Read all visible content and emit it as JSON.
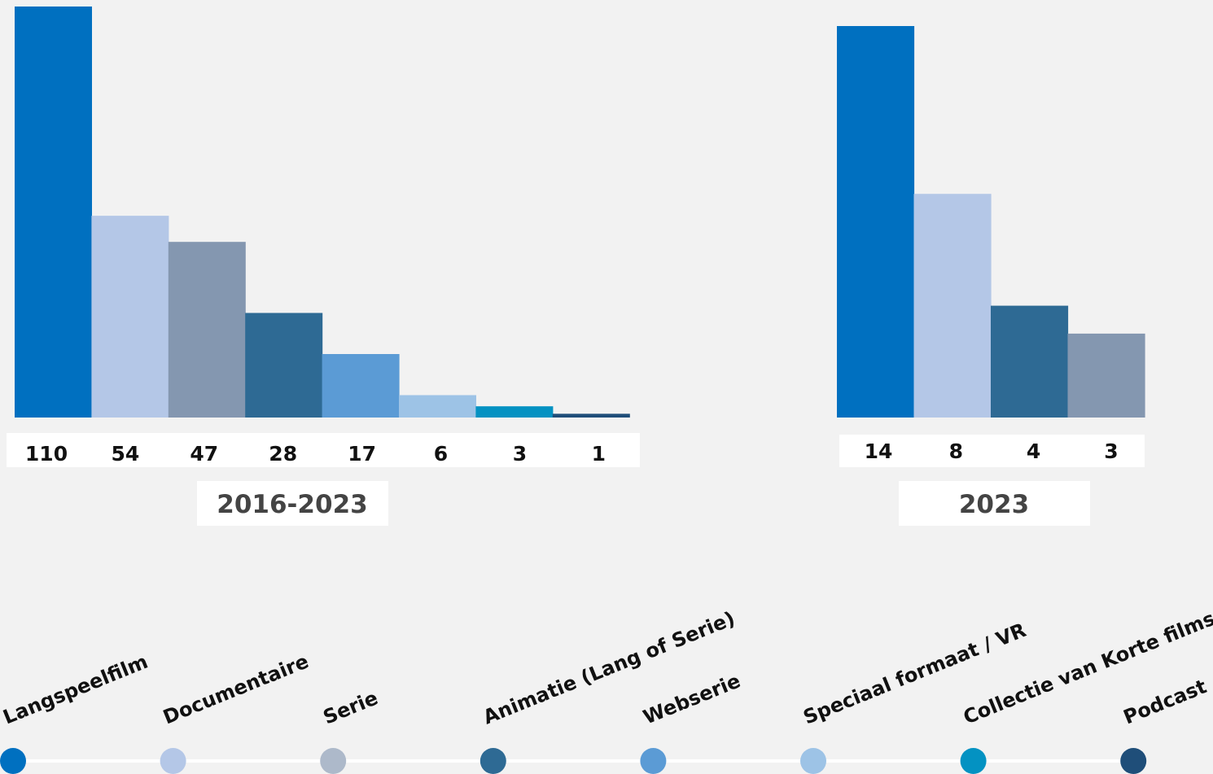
{
  "chart_data": [
    {
      "type": "bar",
      "period_label": "2016-2023",
      "categories": [
        "Langspeelfilm",
        "Documentaire",
        "Serie",
        "Animatie (Lang of Serie)",
        "Webserie",
        "Speciaal formaat / VR",
        "Collectie van Korte films",
        "Podcast"
      ],
      "values": [
        110,
        54,
        47,
        28,
        17,
        6,
        3,
        1
      ],
      "value_labels": [
        "110",
        "54",
        "47",
        "28",
        "17",
        "6",
        "3",
        "1"
      ],
      "colors": [
        "#0070c0",
        "#b4c7e7",
        "#8497b0",
        "#2e6a94",
        "#5b9bd5",
        "#9dc3e6",
        "#0392c2",
        "#1f4e79"
      ],
      "ylim": [
        0,
        110
      ]
    },
    {
      "type": "bar",
      "period_label": "2023",
      "categories": [
        "Langspeelfilm",
        "Documentaire",
        "Animatie (Lang of Serie)",
        "Serie"
      ],
      "values": [
        14,
        8,
        4,
        3
      ],
      "value_labels": [
        "14",
        "8",
        "4",
        "3"
      ],
      "colors": [
        "#0070c0",
        "#b4c7e7",
        "#2e6a94",
        "#8497b0"
      ],
      "ylim": [
        0,
        14.7
      ]
    }
  ],
  "legend": {
    "items": [
      {
        "label": "Langspeelfilm",
        "color": "#0070c0"
      },
      {
        "label": "Documentaire",
        "color": "#b4c7e7"
      },
      {
        "label": "Serie",
        "color": "#adb9ca"
      },
      {
        "label": "Animatie (Lang of Serie)",
        "color": "#2e6a94"
      },
      {
        "label": "Webserie",
        "color": "#5b9bd5"
      },
      {
        "label": "Speciaal formaat / VR",
        "color": "#9dc3e6"
      },
      {
        "label": "Collectie van Korte films",
        "color": "#0392c2"
      },
      {
        "label": "Podcast",
        "color": "#1f4e79"
      }
    ],
    "line_color": "#ffffff"
  }
}
